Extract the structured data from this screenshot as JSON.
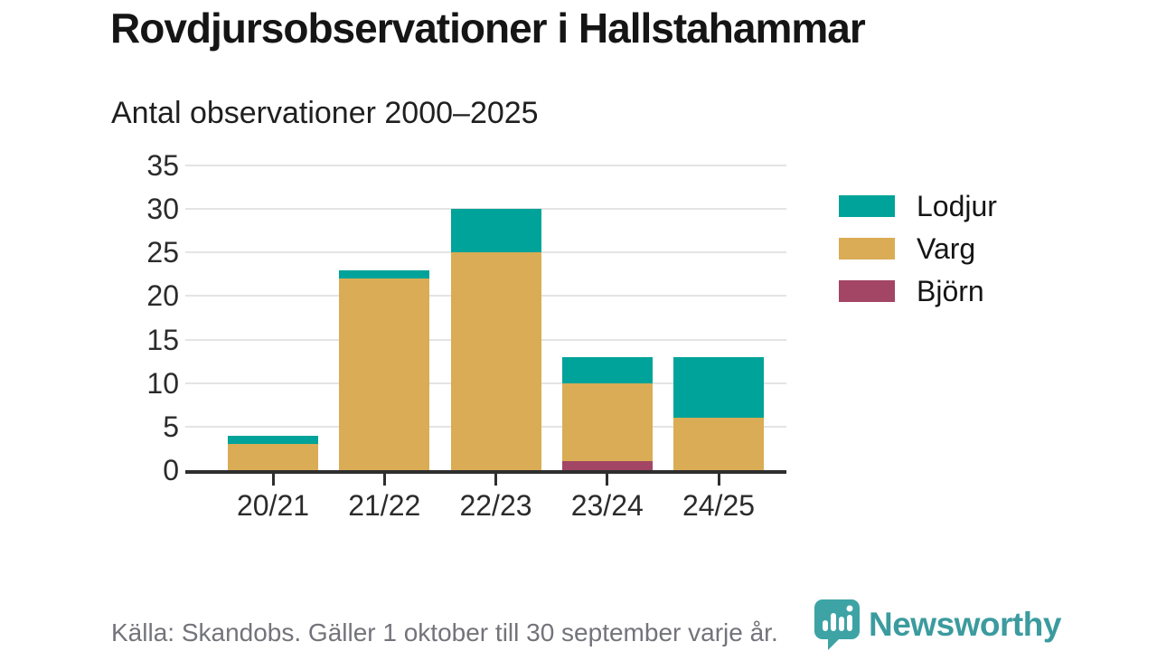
{
  "chart_data": {
    "type": "bar",
    "stacked": true,
    "title": "Rovdjursobservationer i Hallstahammar",
    "subtitle": "Antal observationer 2000–2025",
    "categories": [
      "20/21",
      "21/22",
      "22/23",
      "23/24",
      "24/25"
    ],
    "series": [
      {
        "name": "Lodjur",
        "color": "#00a399",
        "values": [
          1,
          1,
          5,
          3,
          7
        ]
      },
      {
        "name": "Varg",
        "color": "#d9ac55",
        "values": [
          3,
          22,
          25,
          9,
          6
        ]
      },
      {
        "name": "Björn",
        "color": "#a34564",
        "values": [
          0,
          0,
          0,
          1,
          0
        ]
      }
    ],
    "stack_order_bottom_to_top": [
      "Björn",
      "Varg",
      "Lodjur"
    ],
    "totals": [
      4,
      23,
      30,
      13,
      13
    ],
    "xlabel": "",
    "ylabel": "",
    "ylim": [
      0,
      35
    ],
    "yticks": [
      0,
      5,
      10,
      15,
      20,
      25,
      30,
      35
    ],
    "grid": true,
    "legend_position": "right"
  },
  "footer": {
    "source_note": "Källa: Skandobs. Gäller 1 oktober till 30 september varje år.",
    "brand_name": "Newsworthy",
    "brand_icon": "bar-chart-speech-bubble-icon"
  },
  "colors": {
    "lodjur_teal": "#00a399",
    "varg_gold": "#d9ac55",
    "bjorn_maroon": "#a34564",
    "axis": "#2e2e2e",
    "gridline": "#e4e4e4",
    "title_text": "#151515",
    "axis_text": "#2b2b2b",
    "source_text": "#73737b",
    "brand_teal": "#3b9b9e"
  }
}
